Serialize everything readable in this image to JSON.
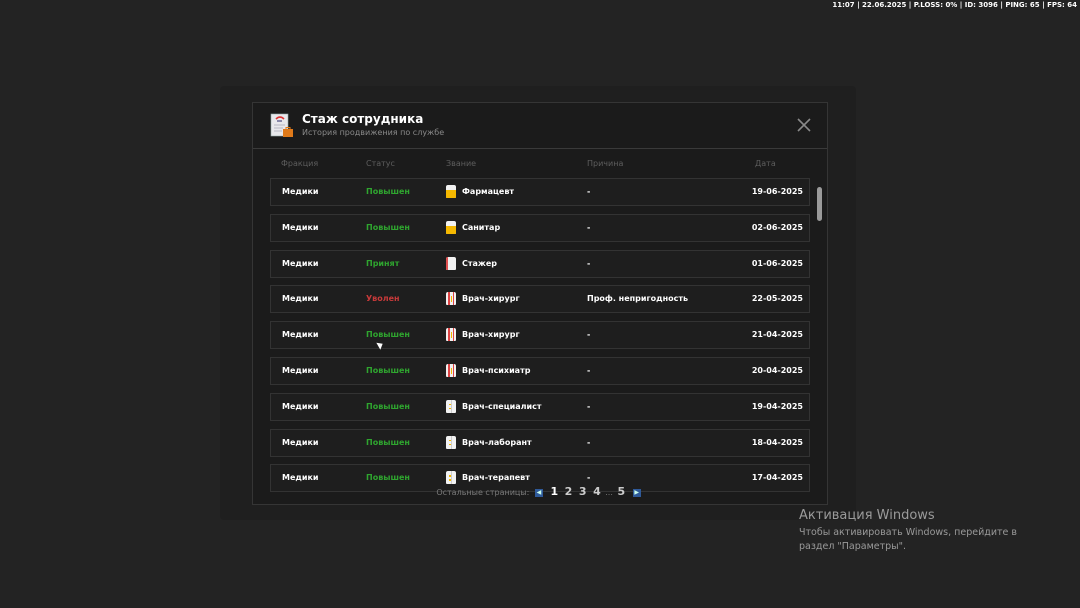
{
  "hud": "11:07 | 22.06.2025 | P.LOSS: 0% | ID: 3096 | PING: 65 | FPS: 64",
  "modal": {
    "icon": "document-briefcase-icon",
    "title": "Стаж сотрудника",
    "subtitle": "История продвижения по службе",
    "close_icon": "close-icon"
  },
  "columns": [
    "Фракция",
    "Статус",
    "Звание",
    "Причина",
    "Дата"
  ],
  "colors": {
    "promoted": "#2fa52f",
    "fired": "#c83a3a",
    "accepted": "#2fa52f"
  },
  "rows": [
    {
      "faction": "Медики",
      "status": "Повышен",
      "status_type": "promoted",
      "rank": "Фармацевт",
      "rank_icon": "yellow-coat",
      "reason": "-",
      "date": "19-06-2025"
    },
    {
      "faction": "Медики",
      "status": "Повышен",
      "status_type": "promoted",
      "rank": "Санитар",
      "rank_icon": "yellow-coat",
      "reason": "-",
      "date": "02-06-2025"
    },
    {
      "faction": "Медики",
      "status": "Принят",
      "status_type": "accepted",
      "rank": "Стажер",
      "rank_icon": "white-red-coat",
      "reason": "-",
      "date": "01-06-2025"
    },
    {
      "faction": "Медики",
      "status": "Уволен",
      "status_type": "fired",
      "rank": "Врач-хирург",
      "rank_icon": "red-stripe-coat",
      "reason": "Проф. непригодность",
      "date": "22-05-2025"
    },
    {
      "faction": "Медики",
      "status": "Повышен",
      "status_type": "promoted",
      "rank": "Врач-хирург",
      "rank_icon": "red-stripe-coat",
      "reason": "-",
      "date": "21-04-2025"
    },
    {
      "faction": "Медики",
      "status": "Повышен",
      "status_type": "promoted",
      "rank": "Врач-психиатр",
      "rank_icon": "red-stripe-coat",
      "reason": "-",
      "date": "20-04-2025"
    },
    {
      "faction": "Медики",
      "status": "Повышен",
      "status_type": "promoted",
      "rank": "Врач-специалист",
      "rank_icon": "white-coat",
      "reason": "-",
      "date": "19-04-2025"
    },
    {
      "faction": "Медики",
      "status": "Повышен",
      "status_type": "promoted",
      "rank": "Врач-лаборант",
      "rank_icon": "white-coat",
      "reason": "-",
      "date": "18-04-2025"
    },
    {
      "faction": "Медики",
      "status": "Повышен",
      "status_type": "promoted",
      "rank": "Врач-терапевт",
      "rank_icon": "white-coat",
      "reason": "-",
      "date": "17-04-2025"
    }
  ],
  "pager": {
    "label": "Остальные страницы:",
    "pages": [
      "1",
      "2",
      "3",
      "4"
    ],
    "ellipsis": "...",
    "last": "5",
    "current": "1"
  },
  "windows": {
    "title": "Активация Windows",
    "text": "Чтобы активировать Windows, перейдите в раздел \"Параметры\"."
  }
}
